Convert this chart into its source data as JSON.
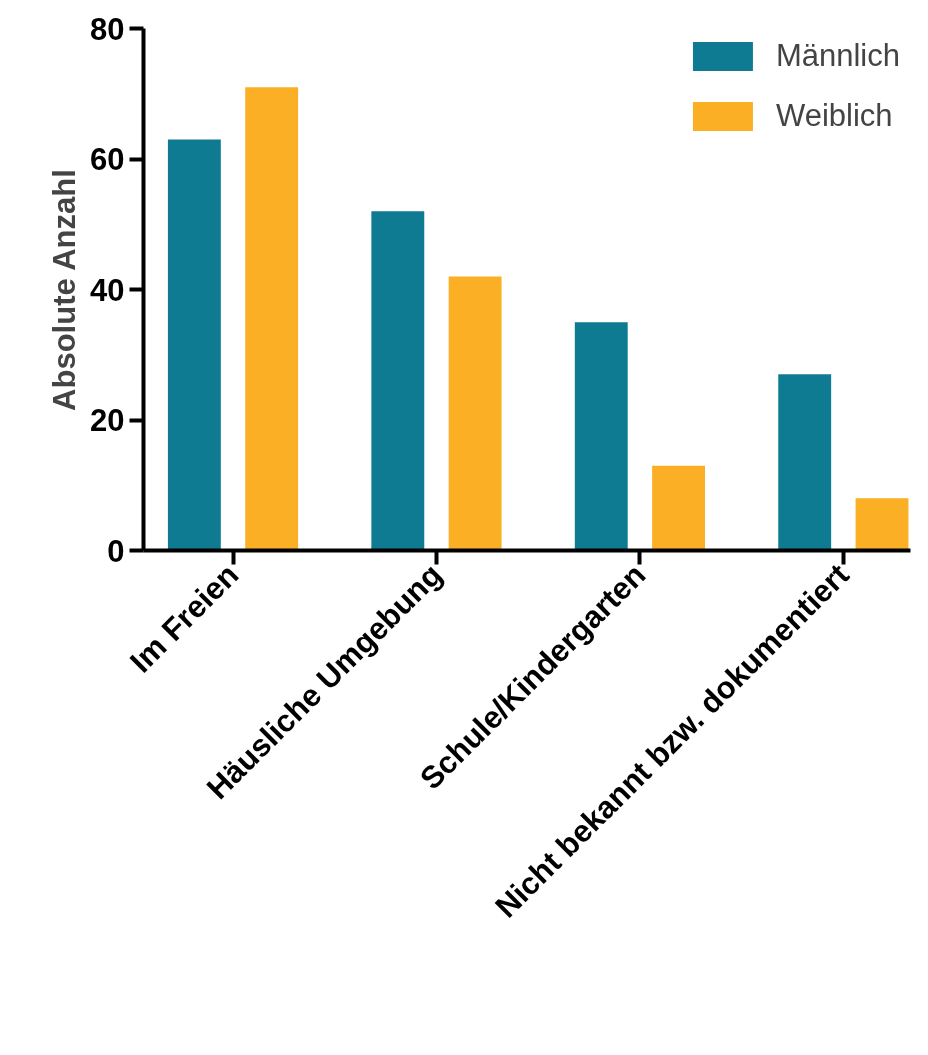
{
  "chart_data": {
    "type": "bar",
    "ylabel": "Absolute Anzahl",
    "categories": [
      "Im Freien",
      "Häusliche Umgebung",
      "Schule/Kindergarten",
      "Nicht bekannt bzw. dokumentiert"
    ],
    "series": [
      {
        "name": "Männlich",
        "color": "#0e7b92",
        "values": [
          63,
          52,
          35,
          27
        ]
      },
      {
        "name": "Weiblich",
        "color": "#fbaf24",
        "values": [
          71,
          42,
          13,
          8
        ]
      }
    ],
    "ylim": [
      0,
      80
    ],
    "yticks": [
      0,
      20,
      40,
      60,
      80
    ],
    "grid": false,
    "legend": "top right"
  }
}
